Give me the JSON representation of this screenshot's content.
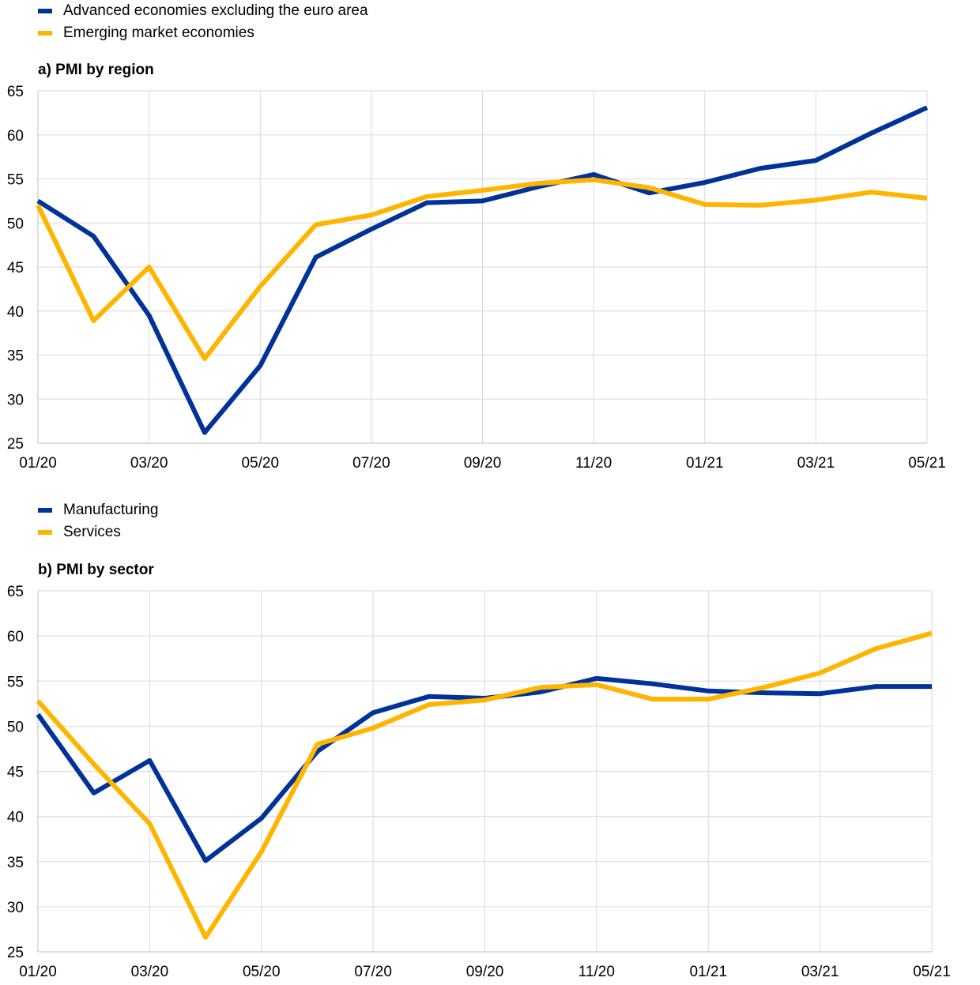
{
  "chart_data": [
    {
      "type": "line",
      "title": "a) PMI by region",
      "categories": [
        "01/20",
        "02/20",
        "03/20",
        "04/20",
        "05/20",
        "06/20",
        "07/20",
        "08/20",
        "09/20",
        "10/20",
        "11/20",
        "12/20",
        "01/21",
        "02/21",
        "03/21",
        "04/21",
        "05/21"
      ],
      "x_tick_labels": [
        "01/20",
        "03/20",
        "05/20",
        "07/20",
        "09/20",
        "11/20",
        "01/21",
        "03/21",
        "05/21"
      ],
      "ylim": [
        25,
        65
      ],
      "y_ticks": [
        25,
        30,
        35,
        40,
        45,
        50,
        55,
        60,
        65
      ],
      "grid": true,
      "legend_position": "top-left",
      "series": [
        {
          "name": "Advanced economies excluding the euro area",
          "color": "#003299",
          "values": [
            52.5,
            48.5,
            39.5,
            26.2,
            33.8,
            46.1,
            49.3,
            52.3,
            52.5,
            54.1,
            55.5,
            53.4,
            54.6,
            56.2,
            57.1,
            60.2,
            63.1
          ]
        },
        {
          "name": "Emerging market economies",
          "color": "#FFB400",
          "values": [
            52.0,
            38.9,
            45.0,
            34.6,
            42.8,
            49.8,
            50.9,
            53.0,
            53.7,
            54.5,
            54.9,
            54.0,
            52.1,
            52.0,
            52.6,
            53.5,
            52.8
          ]
        }
      ]
    },
    {
      "type": "line",
      "title": "b) PMI by sector",
      "categories": [
        "01/20",
        "02/20",
        "03/20",
        "04/20",
        "05/20",
        "06/20",
        "07/20",
        "08/20",
        "09/20",
        "10/20",
        "11/20",
        "12/20",
        "01/21",
        "02/21",
        "03/21",
        "04/21",
        "05/21"
      ],
      "x_tick_labels": [
        "01/20",
        "03/20",
        "05/20",
        "07/20",
        "09/20",
        "11/20",
        "01/21",
        "03/21",
        "05/21"
      ],
      "ylim": [
        25,
        65
      ],
      "y_ticks": [
        25,
        30,
        35,
        40,
        45,
        50,
        55,
        60,
        65
      ],
      "grid": true,
      "legend_position": "top-left",
      "series": [
        {
          "name": "Manufacturing",
          "color": "#003299",
          "values": [
            51.3,
            42.6,
            46.2,
            35.1,
            39.8,
            47.2,
            51.5,
            53.3,
            53.1,
            53.8,
            55.3,
            54.7,
            53.9,
            53.7,
            53.6,
            54.4,
            54.4
          ]
        },
        {
          "name": "Services",
          "color": "#FFB400",
          "values": [
            52.8,
            45.8,
            39.2,
            26.6,
            36.1,
            48.0,
            49.8,
            52.4,
            52.9,
            54.3,
            54.6,
            53.0,
            53.0,
            54.3,
            55.9,
            58.6,
            60.3
          ]
        }
      ]
    }
  ]
}
